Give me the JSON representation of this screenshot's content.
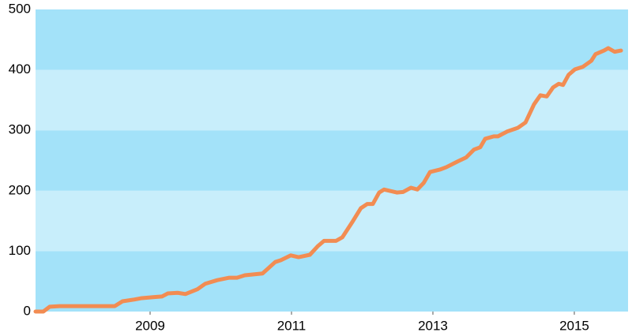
{
  "chart_data": {
    "type": "line",
    "x": [
      2007.38,
      2007.49,
      2007.58,
      2007.72,
      2007.99,
      2008.5,
      2008.61,
      2008.78,
      2008.87,
      2009.06,
      2009.17,
      2009.25,
      2009.39,
      2009.5,
      2009.67,
      2009.78,
      2009.95,
      2010.12,
      2010.23,
      2010.34,
      2010.59,
      2010.77,
      2010.85,
      2010.99,
      2011.1,
      2011.26,
      2011.37,
      2011.46,
      2011.63,
      2011.72,
      2011.87,
      2011.98,
      2012.07,
      2012.15,
      2012.24,
      2012.31,
      2012.49,
      2012.58,
      2012.69,
      2012.78,
      2012.87,
      2012.96,
      2013.1,
      2013.19,
      2013.36,
      2013.47,
      2013.58,
      2013.67,
      2013.74,
      2013.86,
      2013.92,
      2014.05,
      2014.2,
      2014.31,
      2014.43,
      2014.52,
      2014.61,
      2014.7,
      2014.78,
      2014.84,
      2014.92,
      2015.01,
      2015.12,
      2015.24,
      2015.3,
      2015.42,
      2015.48,
      2015.57,
      2015.66
    ],
    "values": [
      0,
      0,
      8,
      9,
      9,
      9,
      17,
      20,
      22,
      24,
      25,
      30,
      31,
      29,
      37,
      46,
      52,
      56,
      56,
      60,
      63,
      82,
      85,
      93,
      90,
      94,
      108,
      117,
      117,
      123,
      150,
      171,
      178,
      178,
      197,
      202,
      197,
      198,
      205,
      202,
      213,
      231,
      235,
      239,
      249,
      255,
      268,
      272,
      286,
      290,
      290,
      298,
      304,
      313,
      343,
      358,
      356,
      371,
      377,
      375,
      392,
      401,
      405,
      415,
      426,
      432,
      436,
      430,
      432
    ],
    "color": "#f28c52",
    "xlim": [
      2007.38,
      2015.76
    ],
    "xticks": [
      2009,
      2011,
      2013,
      2015
    ],
    "ylim": [
      0,
      500
    ],
    "yticks": [
      0,
      100,
      200,
      300,
      400,
      500
    ],
    "band_colors": [
      "#a3e2f9",
      "#c8eefb"
    ]
  }
}
